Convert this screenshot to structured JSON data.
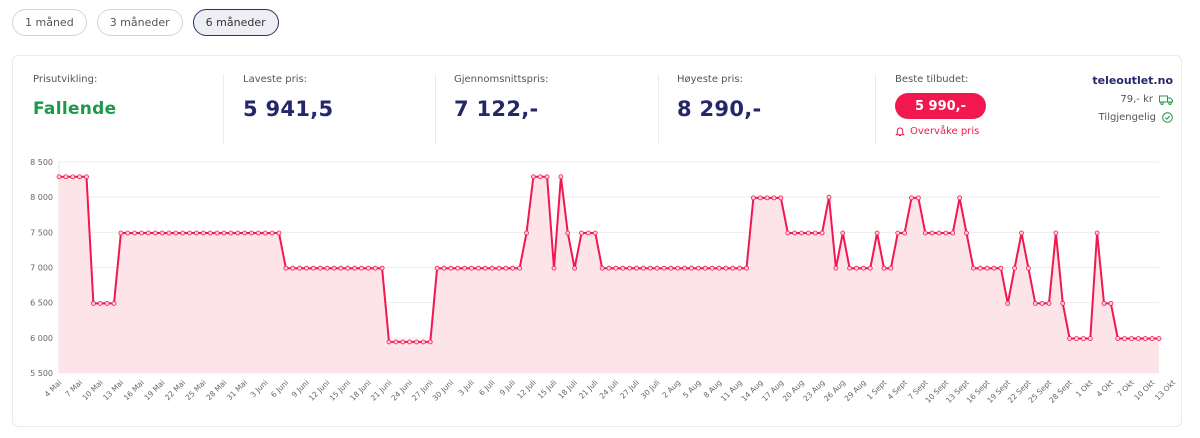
{
  "periods": [
    {
      "label": "1 måned",
      "active": false
    },
    {
      "label": "3 måneder",
      "active": false
    },
    {
      "label": "6 måneder",
      "active": true
    }
  ],
  "stats": {
    "trend": {
      "label": "Prisutvikling:",
      "value": "Fallende"
    },
    "lowest": {
      "label": "Laveste pris:",
      "value": "5 941,5"
    },
    "average": {
      "label": "Gjennomsnittspris:",
      "value": "7 122,-"
    },
    "highest": {
      "label": "Høyeste pris:",
      "value": "8 290,-"
    },
    "best": {
      "label": "Beste tilbudet:",
      "value": "5 990,-",
      "watch_label": "Overvåke pris"
    }
  },
  "shop": {
    "name": "teleoutlet.no",
    "shipping": "79,- kr",
    "availability": "Tilgjengelig",
    "shipping_icon": "truck-icon",
    "availability_icon": "check-circle-icon"
  },
  "colors": {
    "line": "#f0184f",
    "fill": "#fde4e9",
    "green": "#1d9a47",
    "navy": "#24286a",
    "accent": "#f0184f"
  },
  "chart_data": {
    "type": "line",
    "title": "",
    "xlabel": "",
    "ylabel": "",
    "ylim": [
      5500,
      8500
    ],
    "yticks": [
      "5 500",
      "6 000",
      "6 500",
      "7 000",
      "7 500",
      "8 000",
      "8 500"
    ],
    "grid": true,
    "legend": false,
    "xtick_labels": [
      "4 Mai",
      "7 Mai",
      "10 Mai",
      "13 Mai",
      "16 Mai",
      "19 Mai",
      "22 Mai",
      "25 Mai",
      "28 Mai",
      "31 Mai",
      "3 Juni",
      "6 Juni",
      "9 Juni",
      "12 Juni",
      "15 Juni",
      "18 Juni",
      "21 Juni",
      "24 Juni",
      "27 Juni",
      "30 Juni",
      "3 Juli",
      "6 Juli",
      "9 Juli",
      "12 Juli",
      "15 Juli",
      "18 Juli",
      "21 Juli",
      "24 Juli",
      "27 Juli",
      "30 Juli",
      "2 Aug",
      "5 Aug",
      "8 Aug",
      "11 Aug",
      "14 Aug",
      "17 Aug",
      "20 Aug",
      "23 Aug",
      "26 Aug",
      "29 Aug",
      "1 Sept",
      "4 Sept",
      "7 Sept",
      "10 Sept",
      "13 Sept",
      "16 Sept",
      "19 Sept",
      "22 Sept",
      "25 Sept",
      "28 Sept",
      "1 Okt",
      "4 Okt",
      "7 Okt",
      "10 Okt",
      "13 Okt"
    ],
    "series": [
      {
        "name": "Pris",
        "values": [
          8290,
          8290,
          8290,
          8290,
          8290,
          6490,
          6490,
          6490,
          6490,
          7490,
          7490,
          7490,
          7490,
          7490,
          7490,
          7490,
          7490,
          7490,
          7490,
          7490,
          7490,
          7490,
          7490,
          7490,
          7490,
          7490,
          7490,
          7490,
          7490,
          7490,
          7490,
          7490,
          7490,
          6990,
          6990,
          6990,
          6990,
          6990,
          6990,
          6990,
          6990,
          6990,
          6990,
          6990,
          6990,
          6990,
          6990,
          6990,
          5941.5,
          5941.5,
          5941.5,
          5941.5,
          5941.5,
          5941.5,
          5941.5,
          6990,
          6990,
          6990,
          6990,
          6990,
          6990,
          6990,
          6990,
          6990,
          6990,
          6990,
          6990,
          6990,
          7490,
          8290,
          8290,
          8290,
          6990,
          8290,
          7490,
          6990,
          7490,
          7490,
          7490,
          6990,
          6990,
          6990,
          6990,
          6990,
          6990,
          6990,
          6990,
          6990,
          6990,
          6990,
          6990,
          6990,
          6990,
          6990,
          6990,
          6990,
          6990,
          6990,
          6990,
          6990,
          6990,
          7990,
          7990,
          7990,
          7990,
          7990,
          7490,
          7490,
          7490,
          7490,
          7490,
          7490,
          8000,
          6990,
          7490,
          6990,
          6990,
          6990,
          6990,
          7490,
          6990,
          6990,
          7490,
          7490,
          7990,
          7990,
          7490,
          7490,
          7490,
          7490,
          7490,
          7990,
          7490,
          6990,
          6990,
          6990,
          6990,
          6990,
          6490,
          6990,
          7490,
          6990,
          6490,
          6490,
          6490,
          7490,
          6490,
          5990,
          5990,
          5990,
          5990,
          7490,
          6490,
          6490,
          5990,
          5990,
          5990,
          5990,
          5990,
          5990,
          5990
        ]
      }
    ]
  }
}
